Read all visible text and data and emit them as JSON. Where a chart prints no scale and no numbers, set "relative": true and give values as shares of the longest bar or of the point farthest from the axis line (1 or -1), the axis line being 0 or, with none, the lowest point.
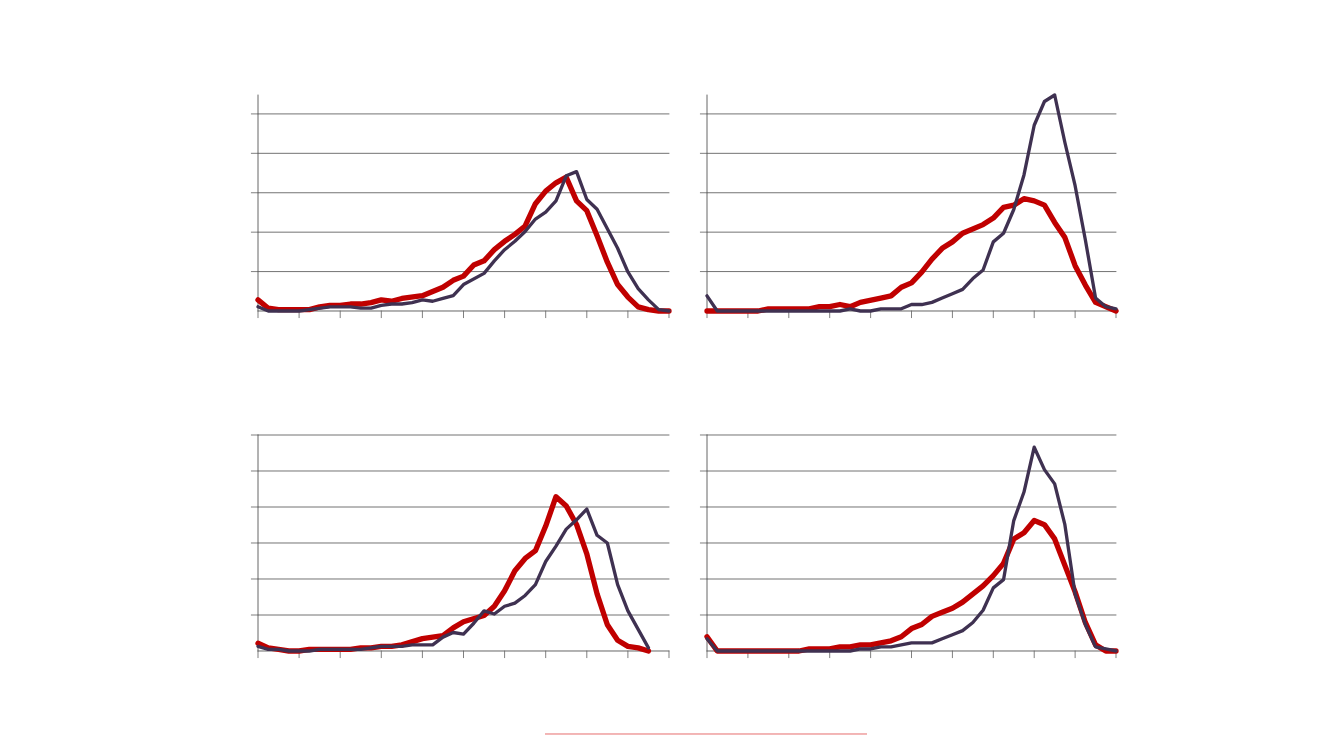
{
  "chart_data": [
    {
      "type": "line",
      "relative": true,
      "grid": "y",
      "categories": [
        null,
        null,
        null,
        null,
        null,
        null,
        null,
        null,
        null,
        null,
        null,
        null,
        null,
        null,
        null,
        null,
        null,
        null,
        null,
        null,
        null,
        null,
        null,
        null,
        null,
        null,
        null,
        null,
        null,
        null,
        null,
        null,
        null,
        null,
        null,
        null,
        null,
        null,
        null,
        null,
        null
      ],
      "series": [
        {
          "color": "#c00000",
          "values": [
            0.08,
            0.02,
            0.01,
            0.01,
            0.01,
            0.01,
            0.03,
            0.04,
            0.04,
            0.05,
            0.05,
            0.06,
            0.08,
            0.07,
            0.09,
            0.1,
            0.11,
            0.14,
            0.17,
            0.22,
            0.25,
            0.33,
            0.36,
            0.44,
            0.5,
            0.55,
            0.61,
            0.77,
            0.86,
            0.92,
            0.96,
            0.79,
            0.72,
            0.54,
            0.35,
            0.19,
            0.1,
            0.03,
            0.01,
            0,
            0
          ]
        },
        {
          "color": "#3f3151",
          "values": [
            0.03,
            0,
            0,
            0,
            0,
            0.01,
            0.02,
            0.03,
            0.03,
            0.03,
            0.02,
            0.02,
            0.04,
            0.05,
            0.05,
            0.06,
            0.08,
            0.07,
            0.09,
            0.11,
            0.19,
            0.23,
            0.27,
            0.36,
            0.44,
            0.5,
            0.57,
            0.66,
            0.71,
            0.79,
            0.97,
            1,
            0.8,
            0.73,
            0.59,
            0.45,
            0.28,
            0.16,
            0.08,
            0.01,
            0
          ]
        }
      ]
    },
    {
      "type": "line",
      "relative": true,
      "grid": "y",
      "categories": [
        null,
        null,
        null,
        null,
        null,
        null,
        null,
        null,
        null,
        null,
        null,
        null,
        null,
        null,
        null,
        null,
        null,
        null,
        null,
        null,
        null,
        null,
        null,
        null,
        null,
        null,
        null,
        null,
        null,
        null,
        null,
        null,
        null,
        null,
        null,
        null,
        null,
        null,
        null,
        null,
        null
      ],
      "series": [
        {
          "color": "#c00000",
          "values": [
            0,
            0,
            0,
            0,
            0,
            0,
            0.01,
            0.01,
            0.01,
            0.01,
            0.01,
            0.02,
            0.02,
            0.03,
            0.02,
            0.04,
            0.05,
            0.06,
            0.07,
            0.11,
            0.13,
            0.18,
            0.24,
            0.29,
            0.32,
            0.36,
            0.38,
            0.4,
            0.43,
            0.48,
            0.49,
            0.52,
            0.51,
            0.49,
            0.41,
            0.34,
            0.21,
            0.12,
            0.04,
            0.02,
            0
          ]
        },
        {
          "color": "#3f3151",
          "values": [
            0.07,
            0,
            0,
            0,
            0,
            0,
            0,
            0,
            0,
            0,
            0,
            0,
            0,
            0,
            0.01,
            0,
            0,
            0.01,
            0.01,
            0.01,
            0.03,
            0.03,
            0.04,
            0.06,
            0.08,
            0.1,
            0.15,
            0.19,
            0.32,
            0.36,
            0.47,
            0.63,
            0.86,
            0.97,
            1,
            0.78,
            0.58,
            0.33,
            0.06,
            0.02,
            0.01
          ]
        }
      ]
    },
    {
      "type": "line",
      "relative": true,
      "grid": "y",
      "categories": [
        null,
        null,
        null,
        null,
        null,
        null,
        null,
        null,
        null,
        null,
        null,
        null,
        null,
        null,
        null,
        null,
        null,
        null,
        null,
        null,
        null,
        null,
        null,
        null,
        null,
        null,
        null,
        null,
        null,
        null,
        null,
        null,
        null,
        null,
        null,
        null,
        null,
        null,
        null,
        null,
        null
      ],
      "series": [
        {
          "color": "#c00000",
          "values": [
            0.05,
            0.02,
            0.01,
            0,
            0,
            0.01,
            0.01,
            0.01,
            0.01,
            0.01,
            0.02,
            0.02,
            0.03,
            0.03,
            0.04,
            0.06,
            0.08,
            0.09,
            0.1,
            0.15,
            0.19,
            0.21,
            0.23,
            0.29,
            0.39,
            0.52,
            0.6,
            0.65,
            0.81,
            1,
            0.94,
            0.82,
            0.63,
            0.37,
            0.17,
            0.07,
            0.03,
            0.02,
            0,
            null,
            null
          ]
        },
        {
          "color": "#3f3151",
          "values": [
            0.03,
            0.01,
            0.01,
            0,
            0,
            0,
            0.01,
            0.01,
            0.01,
            0.01,
            0.01,
            0.02,
            0.03,
            0.03,
            0.03,
            0.04,
            0.04,
            0.04,
            0.09,
            0.12,
            0.11,
            0.18,
            0.26,
            0.24,
            0.29,
            0.31,
            0.36,
            0.43,
            0.58,
            0.68,
            0.79,
            0.85,
            0.92,
            0.75,
            0.7,
            0.43,
            0.26,
            0.14,
            0.02,
            null,
            null
          ]
        }
      ]
    },
    {
      "type": "line",
      "relative": true,
      "grid": "y",
      "categories": [
        null,
        null,
        null,
        null,
        null,
        null,
        null,
        null,
        null,
        null,
        null,
        null,
        null,
        null,
        null,
        null,
        null,
        null,
        null,
        null,
        null,
        null,
        null,
        null,
        null,
        null,
        null,
        null,
        null,
        null,
        null,
        null,
        null,
        null,
        null,
        null,
        null,
        null,
        null,
        null,
        null
      ],
      "series": [
        {
          "color": "#c00000",
          "values": [
            0.07,
            0,
            0,
            0,
            0,
            0,
            0,
            0,
            0,
            0,
            0.01,
            0.01,
            0.01,
            0.02,
            0.02,
            0.03,
            0.03,
            0.04,
            0.05,
            0.07,
            0.11,
            0.13,
            0.17,
            0.19,
            0.21,
            0.24,
            0.28,
            0.32,
            0.37,
            0.43,
            0.55,
            0.58,
            0.64,
            0.62,
            0.55,
            0.42,
            0.29,
            0.14,
            0.03,
            0,
            0
          ]
        },
        {
          "color": "#3f3151",
          "values": [
            0.06,
            0,
            0,
            0,
            0,
            0,
            0,
            0,
            0,
            0,
            0,
            0,
            0,
            0,
            0,
            0.01,
            0.01,
            0.02,
            0.02,
            0.03,
            0.04,
            0.04,
            0.04,
            0.06,
            0.08,
            0.1,
            0.14,
            0.2,
            0.31,
            0.35,
            0.64,
            0.78,
            1,
            0.89,
            0.82,
            0.62,
            0.28,
            0.13,
            0.02,
            0.01,
            0
          ]
        }
      ]
    }
  ]
}
